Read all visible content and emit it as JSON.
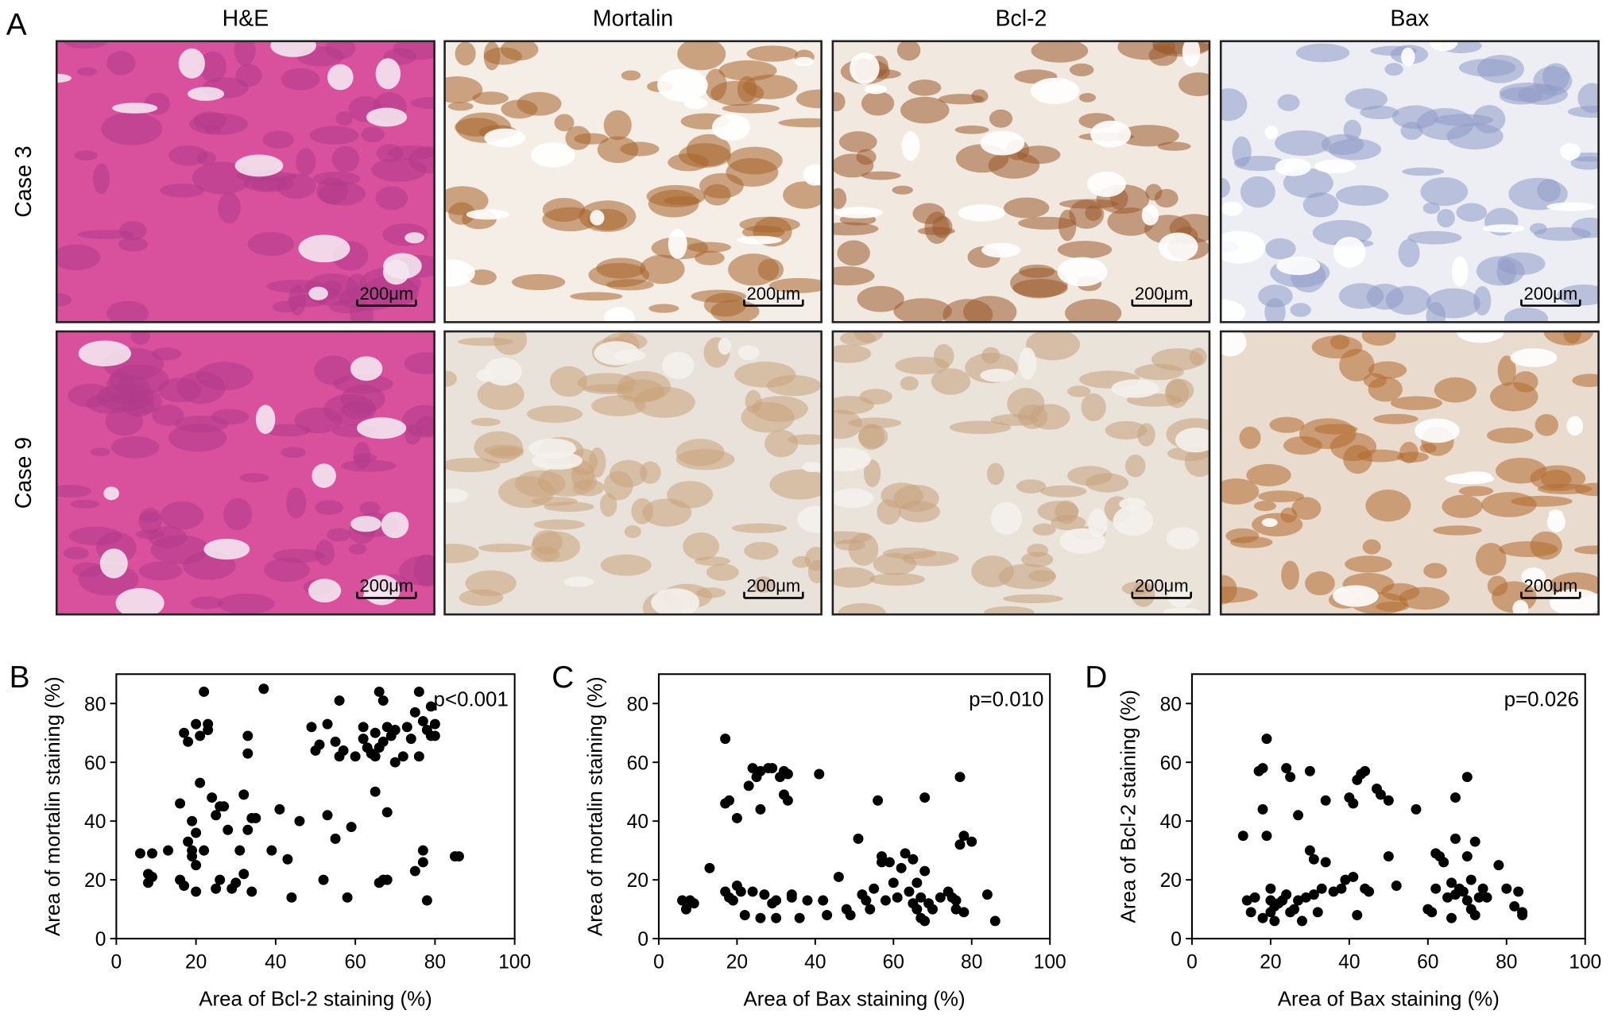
{
  "figure_a": {
    "label": "A",
    "columns": [
      "H&E",
      "Mortalin",
      "Bcl-2",
      "Bax"
    ],
    "rows": [
      "Case 3",
      "Case 9"
    ],
    "scale_bars": [
      [
        "200μm",
        "200μm",
        "200μm",
        "200μm"
      ],
      [
        "200μm",
        "200μm",
        "200μm",
        "200μm"
      ]
    ]
  },
  "chart_data": [
    {
      "type": "scatter",
      "panel_label": "B",
      "annotation": "p<0.001",
      "x_label": "Area of Bcl-2 staining (%)",
      "y_label": "Area of mortalin staining (%)",
      "xlim": [
        0,
        100
      ],
      "ylim": [
        0,
        90
      ],
      "xticks": [
        0,
        20,
        40,
        60,
        80,
        100
      ],
      "yticks": [
        0,
        20,
        40,
        60,
        80
      ],
      "color": "#000000",
      "x": [
        6,
        8,
        8,
        9,
        9,
        13,
        16,
        16,
        17,
        17,
        18,
        18,
        19,
        19,
        19,
        20,
        20,
        20,
        20,
        21,
        21,
        22,
        22,
        23,
        23,
        24,
        25,
        25,
        26,
        26,
        27,
        28,
        29,
        30,
        31,
        32,
        32,
        33,
        33,
        33,
        34,
        34,
        35,
        37,
        39,
        41,
        43,
        44,
        46,
        49,
        50,
        51,
        52,
        53,
        53,
        55,
        55,
        56,
        56,
        57,
        58,
        59,
        60,
        62,
        62,
        63,
        64,
        65,
        65,
        65,
        66,
        66,
        66,
        67,
        67,
        67,
        68,
        68,
        68,
        69,
        70,
        70,
        72,
        73,
        74,
        75,
        75,
        76,
        77,
        77,
        77,
        78,
        78,
        79,
        79,
        80,
        80,
        86,
        85,
        76
      ],
      "values": [
        29,
        22,
        19,
        21,
        29,
        30,
        46,
        20,
        18,
        70,
        67,
        33,
        40,
        30,
        28,
        25,
        36,
        73,
        16,
        53,
        69,
        30,
        84,
        71,
        73,
        48,
        17,
        42,
        45,
        20,
        45,
        37,
        17,
        19,
        30,
        49,
        22,
        63,
        37,
        69,
        41,
        16,
        41,
        85,
        30,
        44,
        27,
        14,
        40,
        72,
        64,
        66,
        20,
        42,
        73,
        67,
        34,
        81,
        62,
        64,
        14,
        38,
        62,
        68,
        72,
        65,
        63,
        62,
        70,
        50,
        65,
        84,
        19,
        81,
        67,
        20,
        20,
        72,
        43,
        69,
        71,
        60,
        62,
        72,
        68,
        77,
        23,
        84,
        74,
        26,
        30,
        71,
        13,
        79,
        69,
        73,
        69,
        28,
        28,
        62
      ]
    },
    {
      "type": "scatter",
      "panel_label": "C",
      "annotation": "p=0.010",
      "x_label": "Area of Bax staining (%)",
      "y_label": "Area of mortalin staining (%)",
      "xlim": [
        0,
        100
      ],
      "ylim": [
        0,
        90
      ],
      "xticks": [
        0,
        20,
        40,
        60,
        80,
        100
      ],
      "yticks": [
        0,
        20,
        40,
        60,
        80
      ],
      "color": "#000000",
      "x": [
        6,
        7,
        8,
        9,
        13,
        17,
        17,
        17,
        18,
        18,
        19,
        20,
        20,
        21,
        22,
        23,
        24,
        24,
        25,
        26,
        26,
        26,
        27,
        28,
        29,
        29,
        30,
        30,
        31,
        32,
        32,
        33,
        33,
        34,
        34,
        36,
        38,
        41,
        42,
        43,
        46,
        48,
        49,
        51,
        52,
        53,
        54,
        55,
        56,
        57,
        57,
        58,
        59,
        60,
        61,
        62,
        63,
        64,
        65,
        65,
        66,
        66,
        67,
        67,
        68,
        68,
        68,
        69,
        70,
        72,
        74,
        75,
        76,
        76,
        77,
        77,
        78,
        78,
        80,
        86,
        84
      ],
      "values": [
        13,
        10,
        13,
        12,
        24,
        16,
        68,
        46,
        47,
        14,
        13,
        18,
        41,
        16,
        8,
        52,
        58,
        16,
        55,
        44,
        57,
        7,
        15,
        58,
        12,
        58,
        13,
        7,
        55,
        57,
        49,
        47,
        56,
        14,
        15,
        7,
        13,
        56,
        13,
        8,
        21,
        10,
        8,
        34,
        15,
        13,
        10,
        17,
        47,
        26,
        28,
        13,
        26,
        19,
        14,
        24,
        29,
        16,
        12,
        27,
        10,
        19,
        7,
        14,
        6,
        23,
        48,
        12,
        10,
        14,
        16,
        14,
        13,
        10,
        55,
        32,
        35,
        9,
        33,
        6,
        15
      ]
    },
    {
      "type": "scatter",
      "panel_label": "D",
      "annotation": "p=0.026",
      "x_label": "Area of Bax staining (%)",
      "y_label": "Area of Bcl-2 staining (%)",
      "xlim": [
        0,
        100
      ],
      "ylim": [
        0,
        90
      ],
      "xticks": [
        0,
        20,
        40,
        60,
        80,
        100
      ],
      "yticks": [
        0,
        20,
        40,
        60,
        80
      ],
      "color": "#000000",
      "x": [
        13,
        14,
        15,
        16,
        17,
        18,
        18,
        18,
        19,
        19,
        20,
        20,
        20,
        21,
        21,
        22,
        23,
        24,
        24,
        25,
        25,
        26,
        27,
        27,
        28,
        29,
        30,
        30,
        31,
        31,
        32,
        33,
        34,
        34,
        36,
        38,
        39,
        40,
        41,
        41,
        42,
        42,
        43,
        44,
        44,
        45,
        47,
        48,
        50,
        50,
        52,
        57,
        60,
        61,
        62,
        62,
        63,
        64,
        65,
        66,
        66,
        67,
        67,
        67,
        68,
        69,
        70,
        70,
        70,
        71,
        71,
        72,
        72,
        73,
        74,
        75,
        78,
        80,
        82,
        83,
        84,
        84
      ],
      "values": [
        35,
        13,
        9,
        14,
        57,
        58,
        44,
        7,
        35,
        68,
        13,
        9,
        17,
        6,
        11,
        12,
        13,
        58,
        15,
        9,
        55,
        10,
        42,
        13,
        6,
        14,
        57,
        30,
        27,
        15,
        9,
        17,
        47,
        26,
        16,
        17,
        20,
        48,
        21,
        46,
        54,
        8,
        56,
        57,
        17,
        16,
        51,
        49,
        28,
        47,
        18,
        44,
        10,
        9,
        17,
        29,
        28,
        26,
        14,
        7,
        19,
        34,
        48,
        15,
        17,
        16,
        28,
        55,
        13,
        10,
        20,
        33,
        8,
        14,
        17,
        14,
        25,
        17,
        11,
        16,
        9,
        8
      ]
    }
  ]
}
